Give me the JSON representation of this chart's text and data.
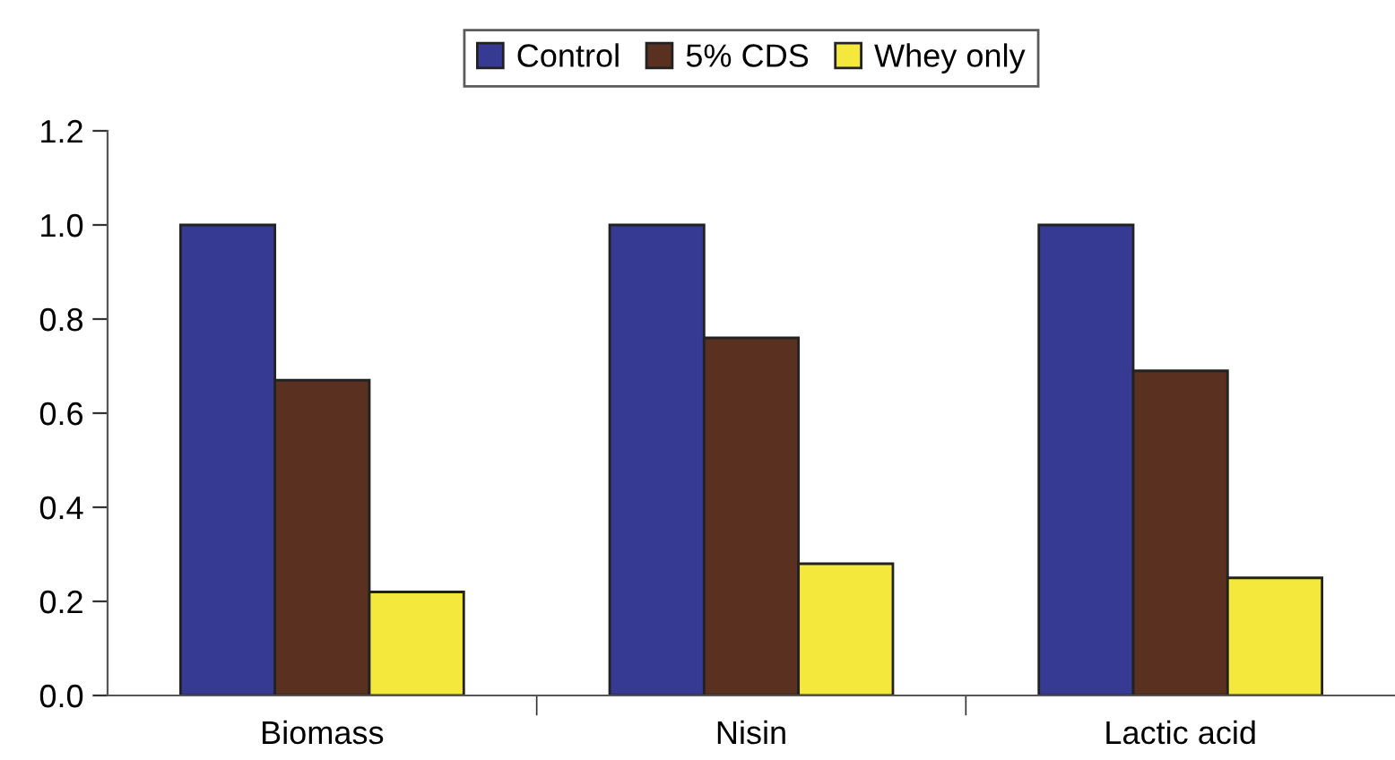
{
  "chart_data": {
    "type": "bar",
    "categories": [
      "Biomass",
      "Nisin",
      "Lactic acid"
    ],
    "series": [
      {
        "name": "Control",
        "color": "#373a93",
        "values": [
          1.0,
          1.0,
          1.0
        ]
      },
      {
        "name": "5% CDS",
        "color": "#5a3120",
        "values": [
          0.67,
          0.76,
          0.69
        ]
      },
      {
        "name": "Whey only",
        "color": "#f5e83c",
        "values": [
          0.22,
          0.28,
          0.25
        ]
      }
    ],
    "ylim": [
      0,
      1.2
    ],
    "yticks": [
      {
        "value": 0,
        "label": "0.0"
      },
      {
        "value": 0.2,
        "label": "0.2"
      },
      {
        "value": 0.4,
        "label": "0.4"
      },
      {
        "value": 0.6,
        "label": "0.6"
      },
      {
        "value": 0.8,
        "label": "0.8"
      },
      {
        "value": 1.0,
        "label": "1.0"
      },
      {
        "value": 1.2,
        "label": "1.2"
      }
    ],
    "grid": false,
    "legend": "top"
  }
}
